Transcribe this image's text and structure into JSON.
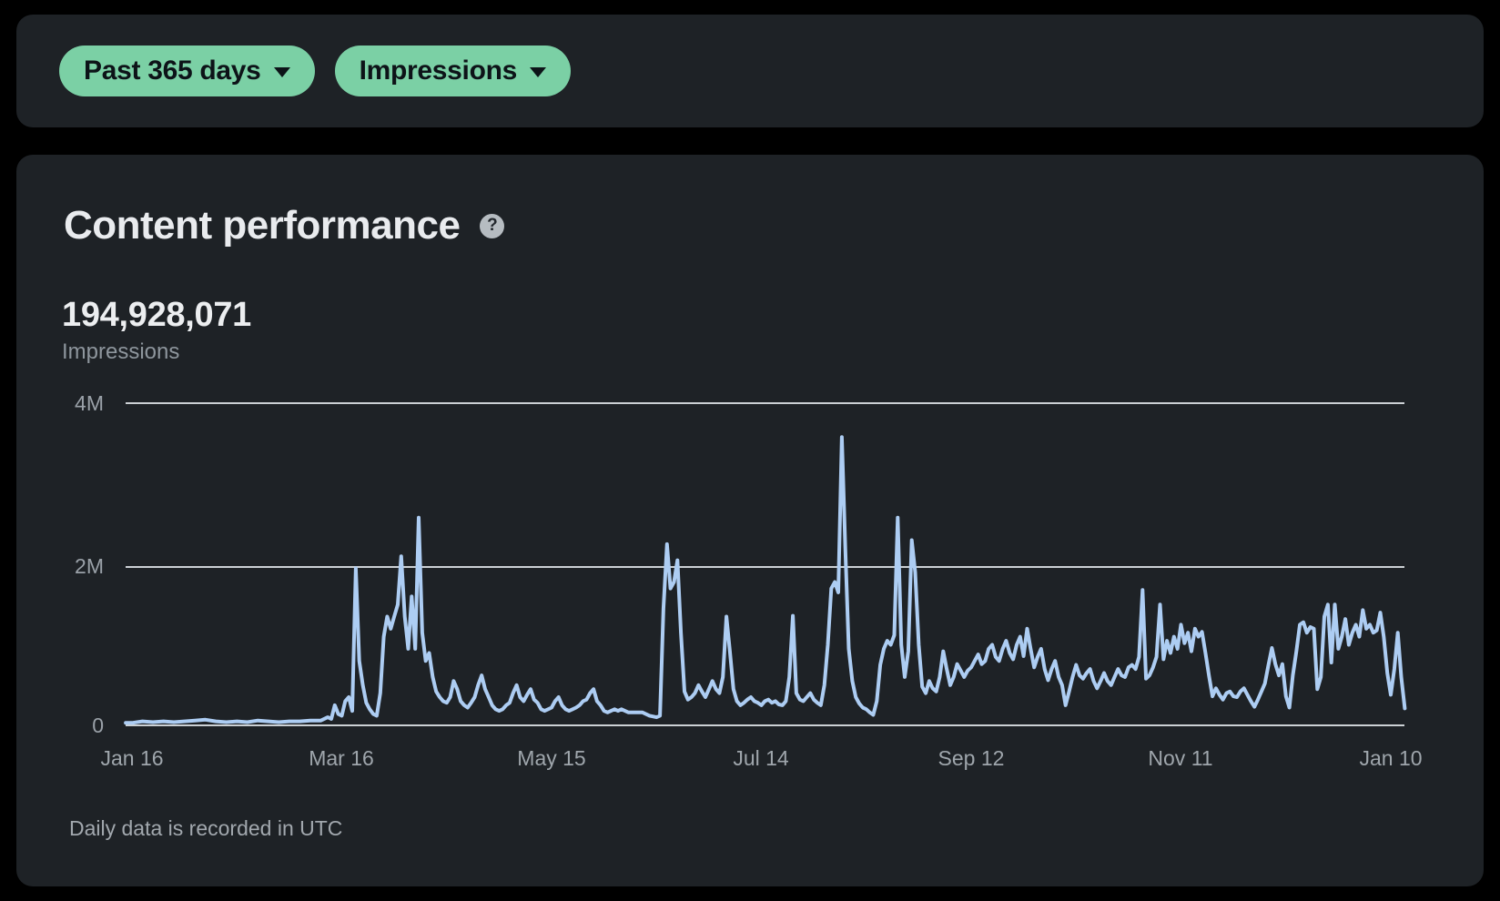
{
  "filters": {
    "date_range": {
      "label": "Past 365 days"
    },
    "metric": {
      "label": "Impressions"
    }
  },
  "card": {
    "title": "Content performance",
    "help_icon": "?",
    "total": "194,928,071",
    "total_label": "Impressions",
    "footnote": "Daily data is recorded in UTC"
  },
  "colors": {
    "page_background": "#000000",
    "card_background": "#1e2226",
    "accent_green": "#7bd0a5",
    "line_blue": "#adcdf3",
    "gridline": "#ccd1d5",
    "text_primary": "#e9ebee",
    "text_secondary": "#8e969d"
  },
  "chart_data": {
    "type": "line",
    "title": "Daily impressions over past 365 days",
    "series_name": "Impressions",
    "unit": "millions of impressions per day",
    "y_ticks": [
      "4M",
      "2M",
      "0"
    ],
    "x_ticks": [
      "Jan 16",
      "Mar 16",
      "May 15",
      "Jul 14",
      "Sep 12",
      "Nov 11",
      "Jan 10"
    ],
    "ylim": [
      0,
      4
    ],
    "x_tick_interval_days": 60,
    "grid": "horizontal-only",
    "legend": "none",
    "points": [
      [
        -1.8,
        0.03
      ],
      [
        0,
        0.03
      ],
      [
        3,
        0.05
      ],
      [
        6,
        0.04
      ],
      [
        9,
        0.05
      ],
      [
        12,
        0.04
      ],
      [
        15,
        0.05
      ],
      [
        18,
        0.06
      ],
      [
        21,
        0.07
      ],
      [
        24,
        0.05
      ],
      [
        27,
        0.04
      ],
      [
        30,
        0.05
      ],
      [
        33,
        0.04
      ],
      [
        36,
        0.06
      ],
      [
        39,
        0.05
      ],
      [
        42,
        0.04
      ],
      [
        45,
        0.05
      ],
      [
        48,
        0.05
      ],
      [
        51,
        0.06
      ],
      [
        54,
        0.06
      ],
      [
        56,
        0.1
      ],
      [
        57,
        0.08
      ],
      [
        58,
        0.25
      ],
      [
        59,
        0.14
      ],
      [
        60,
        0.12
      ],
      [
        61,
        0.3
      ],
      [
        62,
        0.35
      ],
      [
        63,
        0.18
      ],
      [
        64,
        1.95
      ],
      [
        65,
        0.8
      ],
      [
        66,
        0.5
      ],
      [
        67,
        0.28
      ],
      [
        68,
        0.2
      ],
      [
        69,
        0.14
      ],
      [
        70,
        0.12
      ],
      [
        71,
        0.4
      ],
      [
        72,
        1.1
      ],
      [
        73,
        1.35
      ],
      [
        74,
        1.2
      ],
      [
        75,
        1.35
      ],
      [
        76,
        1.5
      ],
      [
        77,
        2.1
      ],
      [
        78,
        1.35
      ],
      [
        79,
        0.95
      ],
      [
        80,
        1.6
      ],
      [
        81,
        0.95
      ],
      [
        82,
        2.58
      ],
      [
        83,
        1.15
      ],
      [
        84,
        0.8
      ],
      [
        85,
        0.9
      ],
      [
        86,
        0.6
      ],
      [
        87,
        0.42
      ],
      [
        88,
        0.35
      ],
      [
        89,
        0.3
      ],
      [
        90,
        0.28
      ],
      [
        91,
        0.35
      ],
      [
        92,
        0.55
      ],
      [
        93,
        0.45
      ],
      [
        94,
        0.3
      ],
      [
        95,
        0.25
      ],
      [
        96,
        0.22
      ],
      [
        97,
        0.28
      ],
      [
        98,
        0.35
      ],
      [
        99,
        0.5
      ],
      [
        100,
        0.62
      ],
      [
        101,
        0.45
      ],
      [
        102,
        0.35
      ],
      [
        103,
        0.25
      ],
      [
        104,
        0.2
      ],
      [
        105,
        0.18
      ],
      [
        106,
        0.2
      ],
      [
        107,
        0.25
      ],
      [
        108,
        0.28
      ],
      [
        109,
        0.4
      ],
      [
        110,
        0.5
      ],
      [
        111,
        0.35
      ],
      [
        112,
        0.3
      ],
      [
        113,
        0.38
      ],
      [
        114,
        0.45
      ],
      [
        115,
        0.32
      ],
      [
        116,
        0.28
      ],
      [
        117,
        0.2
      ],
      [
        118,
        0.18
      ],
      [
        119,
        0.2
      ],
      [
        120,
        0.22
      ],
      [
        121,
        0.3
      ],
      [
        122,
        0.35
      ],
      [
        123,
        0.25
      ],
      [
        124,
        0.2
      ],
      [
        125,
        0.18
      ],
      [
        126,
        0.2
      ],
      [
        127,
        0.22
      ],
      [
        128,
        0.25
      ],
      [
        129,
        0.3
      ],
      [
        130,
        0.32
      ],
      [
        131,
        0.4
      ],
      [
        132,
        0.45
      ],
      [
        133,
        0.3
      ],
      [
        134,
        0.25
      ],
      [
        135,
        0.18
      ],
      [
        136,
        0.16
      ],
      [
        137,
        0.18
      ],
      [
        138,
        0.2
      ],
      [
        139,
        0.18
      ],
      [
        140,
        0.2
      ],
      [
        142,
        0.16
      ],
      [
        144,
        0.16
      ],
      [
        146,
        0.16
      ],
      [
        148,
        0.12
      ],
      [
        150,
        0.1
      ],
      [
        151,
        0.12
      ],
      [
        152,
        1.45
      ],
      [
        153,
        2.25
      ],
      [
        154,
        1.7
      ],
      [
        155,
        1.78
      ],
      [
        156,
        2.05
      ],
      [
        157,
        1.15
      ],
      [
        158,
        0.42
      ],
      [
        159,
        0.32
      ],
      [
        160,
        0.35
      ],
      [
        161,
        0.4
      ],
      [
        162,
        0.5
      ],
      [
        163,
        0.42
      ],
      [
        164,
        0.35
      ],
      [
        165,
        0.45
      ],
      [
        166,
        0.55
      ],
      [
        167,
        0.45
      ],
      [
        168,
        0.4
      ],
      [
        169,
        0.6
      ],
      [
        170,
        1.35
      ],
      [
        171,
        0.92
      ],
      [
        172,
        0.45
      ],
      [
        173,
        0.3
      ],
      [
        174,
        0.25
      ],
      [
        175,
        0.28
      ],
      [
        176,
        0.32
      ],
      [
        177,
        0.35
      ],
      [
        178,
        0.3
      ],
      [
        179,
        0.28
      ],
      [
        180,
        0.25
      ],
      [
        181,
        0.3
      ],
      [
        182,
        0.32
      ],
      [
        183,
        0.28
      ],
      [
        184,
        0.3
      ],
      [
        185,
        0.26
      ],
      [
        186,
        0.25
      ],
      [
        187,
        0.3
      ],
      [
        188,
        0.6
      ],
      [
        189,
        1.36
      ],
      [
        190,
        0.4
      ],
      [
        191,
        0.32
      ],
      [
        192,
        0.3
      ],
      [
        193,
        0.35
      ],
      [
        194,
        0.4
      ],
      [
        195,
        0.32
      ],
      [
        196,
        0.28
      ],
      [
        197,
        0.25
      ],
      [
        198,
        0.5
      ],
      [
        199,
        1.0
      ],
      [
        200,
        1.7
      ],
      [
        201,
        1.78
      ],
      [
        202,
        1.65
      ],
      [
        203,
        3.58
      ],
      [
        204,
        2.2
      ],
      [
        205,
        0.95
      ],
      [
        206,
        0.55
      ],
      [
        207,
        0.35
      ],
      [
        208,
        0.27
      ],
      [
        209,
        0.22
      ],
      [
        210,
        0.2
      ],
      [
        211,
        0.16
      ],
      [
        212,
        0.13
      ],
      [
        213,
        0.3
      ],
      [
        214,
        0.75
      ],
      [
        215,
        0.95
      ],
      [
        216,
        1.05
      ],
      [
        217,
        1.0
      ],
      [
        218,
        1.12
      ],
      [
        219,
        2.58
      ],
      [
        220,
        1.0
      ],
      [
        221,
        0.6
      ],
      [
        222,
        0.92
      ],
      [
        223,
        2.3
      ],
      [
        224,
        1.9
      ],
      [
        225,
        1.0
      ],
      [
        226,
        0.48
      ],
      [
        227,
        0.4
      ],
      [
        228,
        0.55
      ],
      [
        229,
        0.46
      ],
      [
        230,
        0.42
      ],
      [
        231,
        0.6
      ],
      [
        232,
        0.92
      ],
      [
        233,
        0.7
      ],
      [
        234,
        0.5
      ],
      [
        235,
        0.6
      ],
      [
        236,
        0.76
      ],
      [
        237,
        0.68
      ],
      [
        238,
        0.6
      ],
      [
        239,
        0.68
      ],
      [
        240,
        0.72
      ],
      [
        241,
        0.8
      ],
      [
        242,
        0.88
      ],
      [
        243,
        0.76
      ],
      [
        244,
        0.8
      ],
      [
        245,
        0.95
      ],
      [
        246,
        1.0
      ],
      [
        247,
        0.85
      ],
      [
        248,
        0.8
      ],
      [
        249,
        0.95
      ],
      [
        250,
        1.05
      ],
      [
        251,
        0.9
      ],
      [
        252,
        0.82
      ],
      [
        253,
        1.0
      ],
      [
        254,
        1.1
      ],
      [
        255,
        0.86
      ],
      [
        256,
        1.2
      ],
      [
        257,
        0.95
      ],
      [
        258,
        0.72
      ],
      [
        259,
        0.85
      ],
      [
        260,
        0.95
      ],
      [
        261,
        0.7
      ],
      [
        262,
        0.56
      ],
      [
        263,
        0.7
      ],
      [
        264,
        0.8
      ],
      [
        265,
        0.6
      ],
      [
        266,
        0.5
      ],
      [
        267,
        0.25
      ],
      [
        268,
        0.42
      ],
      [
        269,
        0.6
      ],
      [
        270,
        0.75
      ],
      [
        271,
        0.62
      ],
      [
        272,
        0.58
      ],
      [
        273,
        0.65
      ],
      [
        274,
        0.7
      ],
      [
        275,
        0.55
      ],
      [
        276,
        0.46
      ],
      [
        277,
        0.55
      ],
      [
        278,
        0.65
      ],
      [
        279,
        0.55
      ],
      [
        280,
        0.5
      ],
      [
        281,
        0.6
      ],
      [
        282,
        0.7
      ],
      [
        283,
        0.62
      ],
      [
        284,
        0.6
      ],
      [
        285,
        0.72
      ],
      [
        286,
        0.75
      ],
      [
        287,
        0.7
      ],
      [
        288,
        0.85
      ],
      [
        289,
        1.68
      ],
      [
        290,
        0.58
      ],
      [
        291,
        0.62
      ],
      [
        292,
        0.72
      ],
      [
        293,
        0.85
      ],
      [
        294,
        1.5
      ],
      [
        295,
        0.82
      ],
      [
        296,
        1.05
      ],
      [
        297,
        0.9
      ],
      [
        298,
        1.1
      ],
      [
        299,
        0.95
      ],
      [
        300,
        1.25
      ],
      [
        301,
        1.02
      ],
      [
        302,
        1.15
      ],
      [
        303,
        0.92
      ],
      [
        304,
        1.2
      ],
      [
        305,
        1.1
      ],
      [
        306,
        1.16
      ],
      [
        307,
        0.9
      ],
      [
        308,
        0.62
      ],
      [
        309,
        0.36
      ],
      [
        310,
        0.46
      ],
      [
        311,
        0.38
      ],
      [
        312,
        0.32
      ],
      [
        313,
        0.4
      ],
      [
        314,
        0.42
      ],
      [
        315,
        0.36
      ],
      [
        316,
        0.35
      ],
      [
        317,
        0.42
      ],
      [
        318,
        0.46
      ],
      [
        319,
        0.38
      ],
      [
        320,
        0.3
      ],
      [
        321,
        0.23
      ],
      [
        322,
        0.32
      ],
      [
        323,
        0.42
      ],
      [
        324,
        0.52
      ],
      [
        325,
        0.75
      ],
      [
        326,
        0.96
      ],
      [
        327,
        0.76
      ],
      [
        328,
        0.62
      ],
      [
        329,
        0.76
      ],
      [
        330,
        0.36
      ],
      [
        331,
        0.22
      ],
      [
        332,
        0.62
      ],
      [
        333,
        0.92
      ],
      [
        334,
        1.25
      ],
      [
        335,
        1.28
      ],
      [
        336,
        1.15
      ],
      [
        337,
        1.22
      ],
      [
        338,
        1.2
      ],
      [
        339,
        0.45
      ],
      [
        340,
        0.6
      ],
      [
        341,
        1.35
      ],
      [
        342,
        1.5
      ],
      [
        343,
        0.78
      ],
      [
        344,
        1.5
      ],
      [
        345,
        0.95
      ],
      [
        346,
        1.1
      ],
      [
        347,
        1.32
      ],
      [
        348,
        1.0
      ],
      [
        349,
        1.15
      ],
      [
        350,
        1.25
      ],
      [
        351,
        1.1
      ],
      [
        352,
        1.43
      ],
      [
        353,
        1.2
      ],
      [
        354,
        1.25
      ],
      [
        355,
        1.15
      ],
      [
        356,
        1.18
      ],
      [
        357,
        1.4
      ],
      [
        358,
        1.1
      ],
      [
        359,
        0.65
      ],
      [
        360,
        0.38
      ],
      [
        361,
        0.7
      ],
      [
        362,
        1.15
      ],
      [
        363,
        0.6
      ],
      [
        364,
        0.21
      ]
    ]
  }
}
